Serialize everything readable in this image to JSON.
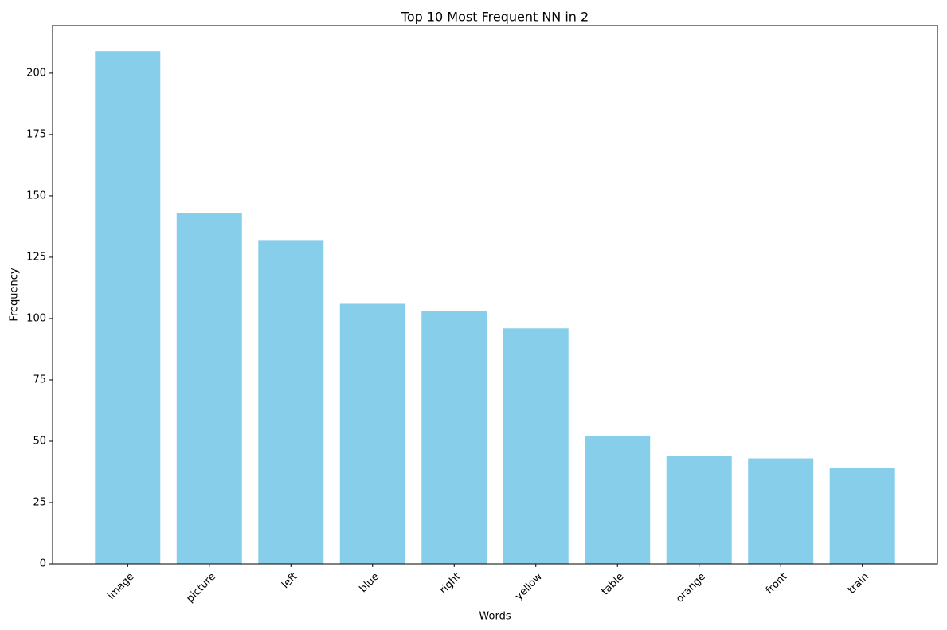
{
  "chart_data": {
    "type": "bar",
    "title": "Top 10 Most Frequent NN in 2",
    "xlabel": "Words",
    "ylabel": "Frequency",
    "categories": [
      "image",
      "picture",
      "left",
      "blue",
      "right",
      "yellow",
      "table",
      "orange",
      "front",
      "train"
    ],
    "values": [
      209,
      143,
      132,
      106,
      103,
      96,
      52,
      44,
      43,
      39
    ],
    "ylim": [
      0,
      219.45
    ],
    "yticks": [
      0,
      25,
      50,
      75,
      100,
      125,
      150,
      175,
      200
    ],
    "ytick_labels": [
      "0",
      "25",
      "50",
      "75",
      "100",
      "125",
      "150",
      "175",
      "200"
    ],
    "xtick_rotation": 45,
    "bar_color": "#87ceeb",
    "grid": false,
    "legend": false
  }
}
